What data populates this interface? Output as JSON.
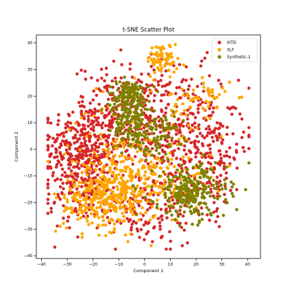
{
  "chart_data": {
    "type": "scatter",
    "title": "t-SNE Scatter Plot",
    "xlabel": "Component 1",
    "ylabel": "Component 2",
    "xlim": [
      -42,
      45
    ],
    "ylim": [
      -41,
      43
    ],
    "xticks": [
      -40,
      -30,
      -20,
      -10,
      0,
      10,
      20,
      30,
      40
    ],
    "yticks": [
      -40,
      -30,
      -20,
      -10,
      0,
      10,
      20,
      30,
      40
    ],
    "grid": false,
    "legend_position": "top-right",
    "series": [
      {
        "name": "IIITD",
        "color": "#d62728",
        "clusters": [
          {
            "center": [
              -24,
              1
            ],
            "spread": [
              7,
              9
            ],
            "n": 300
          },
          {
            "center": [
              -8,
              12
            ],
            "spread": [
              10,
              10
            ],
            "n": 240
          },
          {
            "center": [
              14,
              7
            ],
            "spread": [
              11,
              12
            ],
            "n": 300
          },
          {
            "center": [
              -2,
              -22
            ],
            "spread": [
              13,
              7
            ],
            "n": 180
          },
          {
            "center": [
              -25,
              -12
            ],
            "spread": [
              8,
              7
            ],
            "n": 110
          },
          {
            "center": [
              26,
              -4
            ],
            "spread": [
              6,
              10
            ],
            "n": 120
          }
        ]
      },
      {
        "name": "SLF",
        "color": "#ffa500",
        "clusters": [
          {
            "center": [
              -12,
              -16
            ],
            "spread": [
              7,
              7
            ],
            "n": 320
          },
          {
            "center": [
              7,
              34
            ],
            "spread": [
              3,
              3
            ],
            "n": 70
          },
          {
            "center": [
              -5,
              -2
            ],
            "spread": [
              12,
              10
            ],
            "n": 160
          },
          {
            "center": [
              -25,
              -20
            ],
            "spread": [
              5,
              5
            ],
            "n": 70
          },
          {
            "center": [
              22,
              18
            ],
            "spread": [
              6,
              5
            ],
            "n": 60
          },
          {
            "center": [
              10,
              -12
            ],
            "spread": [
              8,
              5
            ],
            "n": 70
          }
        ]
      },
      {
        "name": "Synthetic-1",
        "color": "#808000",
        "clusters": [
          {
            "center": [
              -6,
              20
            ],
            "spread": [
              4,
              3
            ],
            "n": 150
          },
          {
            "center": [
              -4,
              9
            ],
            "spread": [
              4,
              5
            ],
            "n": 150
          },
          {
            "center": [
              18,
              -16
            ],
            "spread": [
              7,
              5
            ],
            "n": 260
          },
          {
            "center": [
              7,
              6
            ],
            "spread": [
              4,
              4
            ],
            "n": 60
          }
        ]
      }
    ]
  }
}
